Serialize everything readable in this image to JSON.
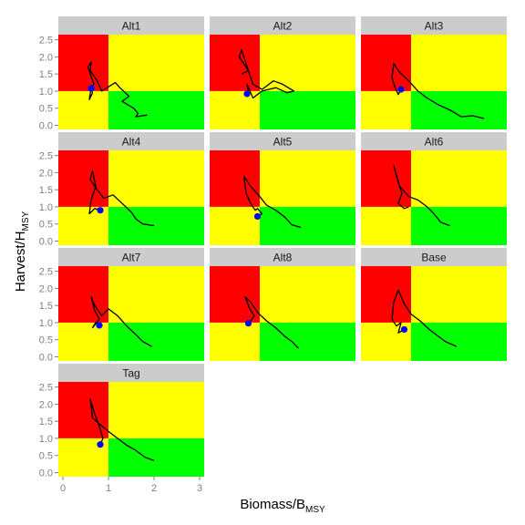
{
  "chart_data": {
    "type": "faceted-line",
    "xlabel": {
      "main": "Biomass/B",
      "sub": "MSY"
    },
    "ylabel": {
      "main": "Harvest/H",
      "sub": "MSY"
    },
    "xlim": [
      -0.1,
      3.1
    ],
    "ylim": [
      -0.12,
      2.65
    ],
    "x_ticks": [
      0,
      1,
      2,
      3
    ],
    "x_tick_labels": [
      "0",
      "1",
      "2",
      "3"
    ],
    "y_ticks": [
      0.0,
      0.5,
      1.0,
      1.5,
      2.0,
      2.5
    ],
    "y_tick_labels": [
      "0.0",
      "0.5",
      "1.0",
      "1.5",
      "2.0",
      "2.5"
    ],
    "zones": [
      {
        "x0": -0.1,
        "x1": 1.0,
        "y0": 1.0,
        "y1": 2.65,
        "color": "#ff0000"
      },
      {
        "x0": 1.0,
        "x1": 3.1,
        "y0": 1.0,
        "y1": 2.65,
        "color": "#ffff00"
      },
      {
        "x0": -0.1,
        "x1": 1.0,
        "y0": -0.12,
        "y1": 1.0,
        "color": "#ffff00"
      },
      {
        "x0": 1.0,
        "x1": 3.1,
        "y0": -0.12,
        "y1": 1.0,
        "color": "#00ff00"
      }
    ],
    "colors": {
      "strip": "#cccccc",
      "line": "#000000",
      "point": "#0000ff",
      "tick_text": "#7f7f7f"
    },
    "panels": [
      {
        "title": "Alt1",
        "point": [
          0.62,
          1.08
        ],
        "x": [
          1.85,
          1.6,
          1.65,
          1.55,
          1.3,
          1.45,
          1.25,
          1.15,
          0.85,
          0.75,
          0.6,
          0.62,
          0.55,
          0.6,
          0.68,
          0.62,
          0.58,
          0.65,
          0.62
        ],
        "y": [
          0.3,
          0.25,
          0.35,
          0.5,
          0.7,
          0.85,
          1.1,
          1.25,
          1.0,
          1.3,
          1.6,
          1.85,
          1.7,
          1.5,
          1.2,
          1.1,
          0.75,
          0.95,
          1.08
        ]
      },
      {
        "title": "Alt2",
        "point": [
          0.72,
          0.92
        ],
        "x": [
          0.6,
          0.75,
          0.55,
          0.6,
          0.85,
          1.05,
          1.3,
          1.5,
          1.75,
          1.6,
          1.35,
          1.05,
          0.85,
          0.72,
          0.75,
          0.72
        ],
        "y": [
          1.5,
          1.6,
          2.0,
          2.2,
          1.2,
          1.05,
          1.3,
          1.2,
          1.0,
          0.95,
          1.1,
          1.0,
          0.8,
          1.2,
          0.95,
          0.92
        ]
      },
      {
        "title": "Alt3",
        "point": [
          0.78,
          1.05
        ],
        "x": [
          2.6,
          2.35,
          2.1,
          1.85,
          1.6,
          1.35,
          1.15,
          0.95,
          0.75,
          0.62,
          0.58,
          0.65,
          0.72,
          0.78
        ],
        "y": [
          0.2,
          0.28,
          0.25,
          0.45,
          0.6,
          0.8,
          1.0,
          1.3,
          1.55,
          1.8,
          1.4,
          1.1,
          0.9,
          1.05
        ]
      },
      {
        "title": "Alt4",
        "point": [
          0.82,
          0.9
        ],
        "x": [
          2.0,
          1.75,
          1.6,
          1.5,
          1.3,
          1.1,
          0.9,
          0.75,
          0.6,
          0.65,
          0.72,
          0.62,
          0.58,
          0.7,
          0.82
        ],
        "y": [
          0.45,
          0.5,
          0.65,
          0.85,
          1.1,
          1.35,
          1.25,
          1.5,
          1.8,
          2.05,
          1.6,
          1.2,
          0.8,
          0.95,
          0.9
        ]
      },
      {
        "title": "Alt5",
        "point": [
          0.95,
          0.72
        ],
        "x": [
          1.9,
          1.7,
          1.55,
          1.35,
          1.15,
          1.0,
          0.8,
          0.65,
          0.7,
          0.8,
          0.9,
          0.95,
          1.05,
          0.95
        ],
        "y": [
          0.4,
          0.48,
          0.7,
          0.9,
          1.05,
          1.3,
          1.6,
          1.9,
          1.4,
          1.1,
          0.9,
          0.95,
          0.8,
          0.72
        ]
      },
      {
        "title": "Alt6",
        "point": null,
        "x": [
          1.85,
          1.65,
          1.5,
          1.35,
          1.15,
          0.95,
          0.75,
          0.62,
          0.7,
          0.8,
          0.72,
          0.85,
          0.95
        ],
        "y": [
          0.45,
          0.55,
          0.8,
          1.0,
          1.2,
          1.3,
          1.6,
          2.2,
          1.8,
          1.4,
          1.1,
          0.95,
          1.0
        ]
      },
      {
        "title": "Alt7",
        "point": [
          0.8,
          0.92
        ],
        "x": [
          1.95,
          1.75,
          1.6,
          1.4,
          1.2,
          1.0,
          0.85,
          0.7,
          0.62,
          0.7,
          0.8,
          0.65,
          0.72,
          0.8
        ],
        "y": [
          0.3,
          0.45,
          0.65,
          0.9,
          1.2,
          1.4,
          1.2,
          1.5,
          1.75,
          1.35,
          1.1,
          0.85,
          1.0,
          0.92
        ]
      },
      {
        "title": "Alt8",
        "point": [
          0.75,
          0.98
        ],
        "x": [
          1.85,
          1.7,
          1.55,
          1.35,
          1.15,
          0.95,
          0.8,
          0.68,
          0.78,
          0.88,
          0.8,
          0.75
        ],
        "y": [
          0.25,
          0.45,
          0.6,
          0.85,
          1.05,
          1.3,
          1.6,
          1.75,
          1.4,
          1.2,
          1.05,
          0.98
        ]
      },
      {
        "title": "Base",
        "point": [
          0.85,
          0.8
        ],
        "x": [
          2.0,
          1.75,
          1.6,
          1.4,
          1.2,
          1.0,
          0.85,
          0.72,
          0.62,
          0.58,
          0.68,
          0.78,
          0.72,
          0.85
        ],
        "y": [
          0.3,
          0.45,
          0.6,
          0.8,
          1.05,
          1.25,
          1.55,
          1.95,
          1.6,
          1.1,
          0.9,
          1.0,
          0.7,
          0.8
        ]
      },
      {
        "title": "Tag",
        "point": [
          0.82,
          0.82
        ],
        "x": [
          2.0,
          1.8,
          1.6,
          1.4,
          1.2,
          1.0,
          0.82,
          0.65,
          0.6,
          0.7,
          0.8,
          0.88,
          0.82
        ],
        "y": [
          0.35,
          0.45,
          0.65,
          0.8,
          1.0,
          1.2,
          1.4,
          1.6,
          2.15,
          1.7,
          1.35,
          1.0,
          0.82
        ]
      }
    ]
  }
}
